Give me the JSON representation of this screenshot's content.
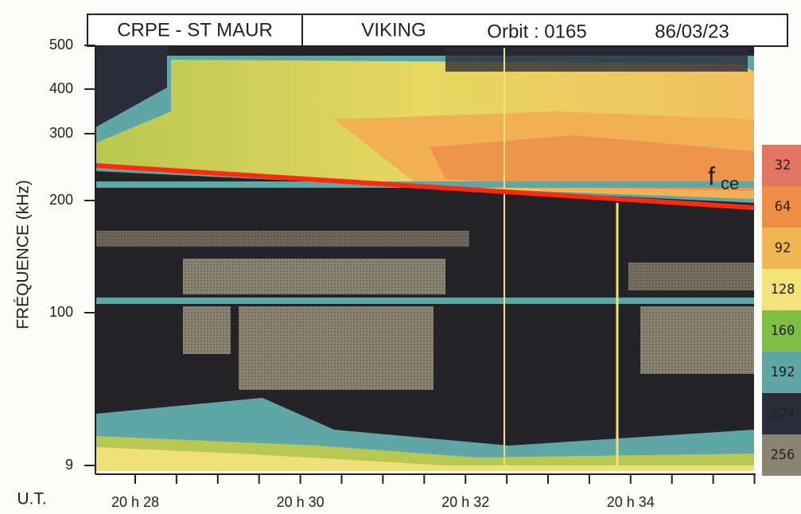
{
  "chart_data": {
    "type": "spectrogram",
    "header": [
      "CRPE - ST MAUR",
      "VIKING",
      "Orbit : 0165",
      "86/03/23"
    ],
    "y_label": "FRÉQUENCE (kHz)",
    "yticks": [
      500,
      400,
      300,
      200,
      100,
      9
    ],
    "x_label": "U.T.",
    "xtick_labels": [
      "20 h 28",
      "20 h 30",
      "20 h 32",
      "20 h 34"
    ],
    "annotation": {
      "main": "f",
      "sub": "ce",
      "color": "#ff2a10"
    },
    "colorbar": {
      "labels": [
        32,
        64,
        92,
        128,
        160,
        192,
        224,
        256
      ],
      "colors": [
        "#e27462",
        "#ee8e44",
        "#f3b452",
        "#f4e27a",
        "#7fbf45",
        "#5fa7a6",
        "#2b2c3a",
        "#8b8470"
      ]
    }
  }
}
